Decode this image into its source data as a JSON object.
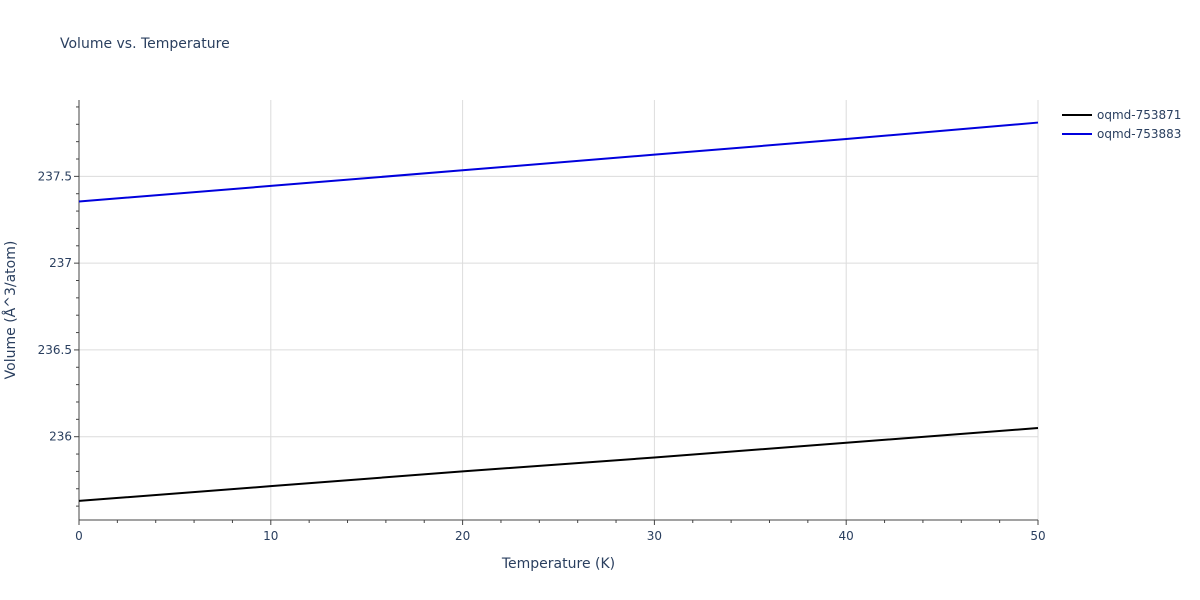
{
  "chart_data": {
    "type": "line",
    "title": "Volume vs. Temperature",
    "xlabel": "Temperature (K)",
    "ylabel": "Volume (Å^3/atom)",
    "xlim": [
      0,
      50
    ],
    "ylim": [
      235.52,
      237.94
    ],
    "x_ticks": [
      0,
      10,
      20,
      30,
      40,
      50
    ],
    "x_tick_labels": [
      "0",
      "10",
      "20",
      "30",
      "40",
      "50"
    ],
    "y_ticks": [
      236,
      236.5,
      237,
      237.5
    ],
    "y_tick_labels": [
      "236",
      "236.5",
      "237",
      "237.5"
    ],
    "grid": true,
    "legend_position": "top-right",
    "series": [
      {
        "name": "oqmd-753871",
        "color": "#000000",
        "x": [
          0,
          10,
          20,
          30,
          40,
          50
        ],
        "y": [
          235.63,
          235.715,
          235.8,
          235.88,
          235.965,
          236.05
        ]
      },
      {
        "name": "oqmd-753883",
        "color": "#0000dd",
        "x": [
          0,
          10,
          20,
          30,
          40,
          50
        ],
        "y": [
          237.355,
          237.445,
          237.535,
          237.625,
          237.715,
          237.81
        ]
      }
    ]
  }
}
